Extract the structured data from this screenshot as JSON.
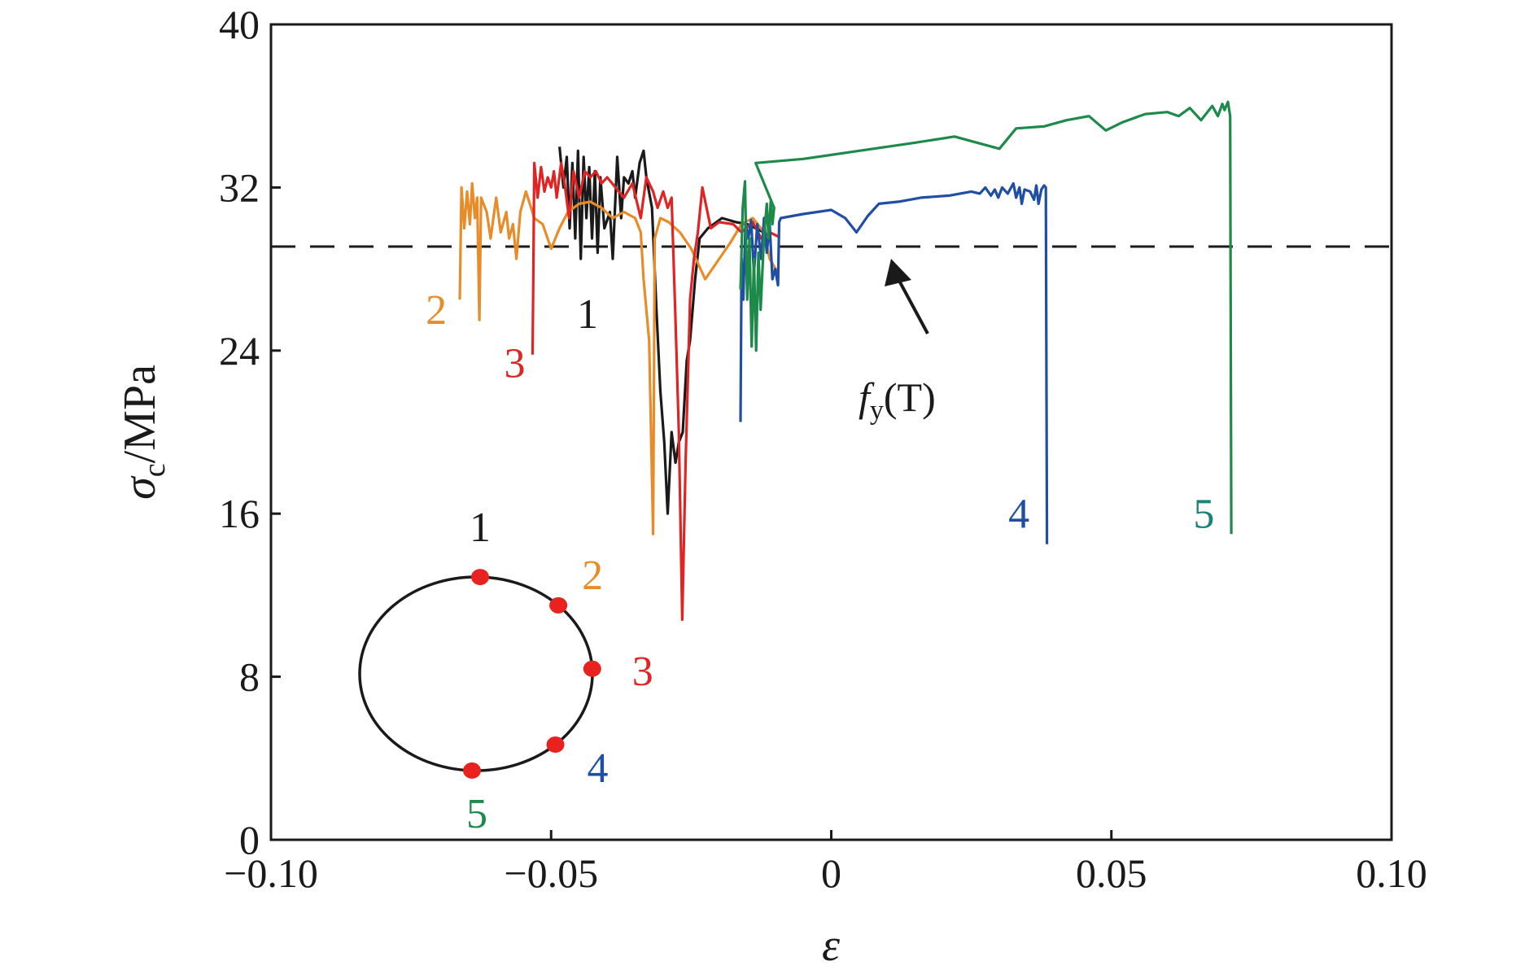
{
  "chart_data": {
    "type": "line",
    "xlabel": "ε",
    "ylabel_symbol": "σ",
    "ylabel_subscript": "c",
    "ylabel_unit": "/MPa",
    "xlim": [
      -0.1,
      0.1
    ],
    "ylim": [
      0,
      40
    ],
    "x_ticks": [
      -0.1,
      -0.05,
      0,
      0.05,
      0.1
    ],
    "x_tick_labels": [
      "−0.10",
      "−0.05",
      "0",
      "0.05",
      "0.10"
    ],
    "y_ticks": [
      0,
      8,
      16,
      24,
      32,
      40
    ],
    "y_tick_labels": [
      "0",
      "8",
      "16",
      "24",
      "32",
      "40"
    ],
    "grid": false,
    "reference_line": {
      "y": 29.1,
      "style": "dashed",
      "label_f": "f",
      "label_sub": "y",
      "label_rest": "(T)"
    },
    "series": [
      {
        "name": "1",
        "color": "#1a1a1a",
        "points": [
          [
            -0.0485,
            34
          ],
          [
            -0.0478,
            32
          ],
          [
            -0.0472,
            33.5
          ],
          [
            -0.0467,
            30
          ],
          [
            -0.0462,
            33.2
          ],
          [
            -0.0457,
            29.5
          ],
          [
            -0.0452,
            33.8
          ],
          [
            -0.0447,
            28.5
          ],
          [
            -0.0442,
            33.5
          ],
          [
            -0.0437,
            30.5
          ],
          [
            -0.0432,
            33
          ],
          [
            -0.0427,
            29.5
          ],
          [
            -0.0422,
            32.8
          ],
          [
            -0.0417,
            28.8
          ],
          [
            -0.0412,
            32.5
          ],
          [
            -0.0405,
            30
          ],
          [
            -0.0395,
            30.8
          ],
          [
            -0.039,
            28.5
          ],
          [
            -0.0382,
            33.5
          ],
          [
            -0.0375,
            30.5
          ],
          [
            -0.037,
            32.5
          ],
          [
            -0.0362,
            32.2
          ],
          [
            -0.0355,
            32.8
          ],
          [
            -0.035,
            31.5
          ],
          [
            -0.0342,
            33.2
          ],
          [
            -0.0335,
            33.8
          ],
          [
            -0.033,
            32.5
          ],
          [
            -0.032,
            31
          ],
          [
            -0.0312,
            26
          ],
          [
            -0.0305,
            22
          ],
          [
            -0.0298,
            19.5
          ],
          [
            -0.0292,
            16
          ],
          [
            -0.0285,
            20
          ],
          [
            -0.0278,
            18.5
          ],
          [
            -0.0272,
            19.5
          ],
          [
            -0.0265,
            20
          ],
          [
            -0.0258,
            23.5
          ],
          [
            -0.0252,
            24.5
          ],
          [
            -0.0243,
            27.5
          ],
          [
            -0.0235,
            29.5
          ],
          [
            -0.022,
            30
          ],
          [
            -0.0195,
            30.5
          ],
          [
            -0.017,
            30.3
          ],
          [
            -0.015,
            30.2
          ],
          [
            -0.0135,
            30
          ],
          [
            -0.012,
            29.8
          ]
        ]
      },
      {
        "name": "2",
        "color": "#e88c2a",
        "points": [
          [
            -0.0663,
            26.5
          ],
          [
            -0.066,
            32
          ],
          [
            -0.0655,
            30
          ],
          [
            -0.065,
            31.8
          ],
          [
            -0.0645,
            30.2
          ],
          [
            -0.0641,
            32.2
          ],
          [
            -0.0636,
            30.5
          ],
          [
            -0.0632,
            31.5
          ],
          [
            -0.0628,
            25.5
          ],
          [
            -0.0625,
            31.5
          ],
          [
            -0.0615,
            30.8
          ],
          [
            -0.0608,
            29.5
          ],
          [
            -0.0598,
            31.5
          ],
          [
            -0.059,
            29.8
          ],
          [
            -0.058,
            30.8
          ],
          [
            -0.0575,
            29.5
          ],
          [
            -0.0568,
            30.2
          ],
          [
            -0.0562,
            28.5
          ],
          [
            -0.0555,
            30.8
          ],
          [
            -0.0545,
            31.8
          ],
          [
            -0.053,
            30.5
          ],
          [
            -0.0515,
            30.2
          ],
          [
            -0.05,
            29
          ],
          [
            -0.0485,
            30
          ],
          [
            -0.047,
            30.8
          ],
          [
            -0.045,
            31.2
          ],
          [
            -0.043,
            31.3
          ],
          [
            -0.041,
            31
          ],
          [
            -0.039,
            30.5
          ],
          [
            -0.037,
            30.8
          ],
          [
            -0.035,
            30.5
          ],
          [
            -0.034,
            29.8
          ],
          [
            -0.0335,
            27.5
          ],
          [
            -0.0325,
            24.5
          ],
          [
            -0.0318,
            15
          ],
          [
            -0.0315,
            29.5
          ],
          [
            -0.0305,
            30.5
          ],
          [
            -0.029,
            30.3
          ],
          [
            -0.027,
            29.8
          ],
          [
            -0.025,
            29
          ],
          [
            -0.0225,
            27.5
          ],
          [
            -0.02,
            28.5
          ],
          [
            -0.018,
            29.3
          ],
          [
            -0.016,
            30.2
          ],
          [
            -0.014,
            30.5
          ],
          [
            -0.012,
            29.8
          ],
          [
            -0.011,
            28.5
          ],
          [
            -0.0095,
            27.8
          ]
        ]
      },
      {
        "name": "3",
        "color": "#e02424",
        "points": [
          [
            -0.0533,
            23.8
          ],
          [
            -0.053,
            33.2
          ],
          [
            -0.0524,
            31.5
          ],
          [
            -0.0518,
            33
          ],
          [
            -0.0512,
            31.8
          ],
          [
            -0.0506,
            32.5
          ],
          [
            -0.05,
            32
          ],
          [
            -0.0495,
            32.8
          ],
          [
            -0.049,
            31.5
          ],
          [
            -0.0482,
            33.2
          ],
          [
            -0.0476,
            32.2
          ],
          [
            -0.0468,
            30.5
          ],
          [
            -0.046,
            32.8
          ],
          [
            -0.045,
            31.5
          ],
          [
            -0.044,
            32.8
          ],
          [
            -0.043,
            32.5
          ],
          [
            -0.042,
            32.8
          ],
          [
            -0.041,
            32.2
          ],
          [
            -0.04,
            32.5
          ],
          [
            -0.0385,
            32
          ],
          [
            -0.037,
            31.5
          ],
          [
            -0.0355,
            32.2
          ],
          [
            -0.034,
            30.5
          ],
          [
            -0.033,
            32.5
          ],
          [
            -0.0318,
            31.8
          ],
          [
            -0.031,
            31
          ],
          [
            -0.03,
            31.8
          ],
          [
            -0.0292,
            31
          ],
          [
            -0.0285,
            31.5
          ],
          [
            -0.0278,
            25.5
          ],
          [
            -0.0272,
            20
          ],
          [
            -0.0266,
            10.8
          ],
          [
            -0.026,
            18.5
          ],
          [
            -0.0252,
            26.5
          ],
          [
            -0.0245,
            28.5
          ],
          [
            -0.0238,
            29.8
          ],
          [
            -0.023,
            32
          ],
          [
            -0.0215,
            30
          ],
          [
            -0.02,
            30.3
          ],
          [
            -0.0175,
            30.2
          ],
          [
            -0.016,
            29.8
          ],
          [
            -0.014,
            30.3
          ],
          [
            -0.0125,
            29.5
          ],
          [
            -0.011,
            29.8
          ],
          [
            -0.0095,
            29.6
          ]
        ]
      },
      {
        "name": "4",
        "color": "#1f4ea3",
        "points": [
          [
            -0.0162,
            20.5
          ],
          [
            -0.016,
            28.5
          ],
          [
            -0.0157,
            26.5
          ],
          [
            -0.0153,
            30.3
          ],
          [
            -0.0148,
            29.5
          ],
          [
            -0.0143,
            30.4
          ],
          [
            -0.0138,
            27.8
          ],
          [
            -0.0132,
            30.2
          ],
          [
            -0.0125,
            28.5
          ],
          [
            -0.012,
            30.5
          ],
          [
            -0.0115,
            28.8
          ],
          [
            -0.011,
            30.2
          ],
          [
            -0.0105,
            27.5
          ],
          [
            -0.01,
            28
          ],
          [
            -0.0095,
            27.2
          ],
          [
            -0.0093,
            30.3
          ],
          [
            -0.009,
            30.5
          ],
          [
            -0.005,
            30.7
          ],
          [
            0,
            30.9
          ],
          [
            0.0025,
            30.5
          ],
          [
            0.0045,
            29.8
          ],
          [
            0.0065,
            30.6
          ],
          [
            0.0085,
            31.2
          ],
          [
            0.012,
            31.3
          ],
          [
            0.016,
            31.5
          ],
          [
            0.021,
            31.6
          ],
          [
            0.025,
            31.8
          ],
          [
            0.0265,
            31.7
          ],
          [
            0.0275,
            32
          ],
          [
            0.0285,
            31.6
          ],
          [
            0.0292,
            31.9
          ],
          [
            0.0298,
            31.5
          ],
          [
            0.0305,
            32
          ],
          [
            0.0315,
            31.7
          ],
          [
            0.0325,
            32.2
          ],
          [
            0.033,
            31.5
          ],
          [
            0.0336,
            32
          ],
          [
            0.034,
            31.2
          ],
          [
            0.0345,
            31.9
          ],
          [
            0.0355,
            31.8
          ],
          [
            0.0362,
            31.4
          ],
          [
            0.0366,
            32.1
          ],
          [
            0.037,
            31.2
          ],
          [
            0.0375,
            31.9
          ],
          [
            0.038,
            32.1
          ],
          [
            0.0383,
            32
          ],
          [
            0.0385,
            14.5
          ]
        ]
      },
      {
        "name": "5",
        "color": "#1e8a4a",
        "points": [
          [
            -0.0162,
            27
          ],
          [
            -0.0158,
            31
          ],
          [
            -0.0154,
            32.3
          ],
          [
            -0.015,
            26.5
          ],
          [
            -0.0146,
            29.5
          ],
          [
            -0.0142,
            24.2
          ],
          [
            -0.0138,
            28.5
          ],
          [
            -0.0134,
            24
          ],
          [
            -0.013,
            28.8
          ],
          [
            -0.0126,
            26
          ],
          [
            -0.012,
            29.6
          ],
          [
            -0.0115,
            31.2
          ],
          [
            -0.0112,
            29.5
          ],
          [
            -0.0108,
            31.3
          ],
          [
            -0.0105,
            30.2
          ],
          [
            -0.0102,
            31
          ],
          [
            -0.0135,
            33.2
          ],
          [
            -0.005,
            33.4
          ],
          [
            0.005,
            33.8
          ],
          [
            0.015,
            34.2
          ],
          [
            0.022,
            34.5
          ],
          [
            0.026,
            34.2
          ],
          [
            0.03,
            33.9
          ],
          [
            0.033,
            34.9
          ],
          [
            0.038,
            35
          ],
          [
            0.042,
            35.3
          ],
          [
            0.046,
            35.5
          ],
          [
            0.049,
            34.8
          ],
          [
            0.052,
            35.2
          ],
          [
            0.056,
            35.6
          ],
          [
            0.06,
            35.7
          ],
          [
            0.062,
            35.5
          ],
          [
            0.064,
            35.9
          ],
          [
            0.066,
            35.3
          ],
          [
            0.068,
            36
          ],
          [
            0.069,
            35.5
          ],
          [
            0.0698,
            36.1
          ],
          [
            0.0702,
            35.8
          ],
          [
            0.0708,
            36.2
          ],
          [
            0.0712,
            35.5
          ],
          [
            0.0714,
            15
          ]
        ]
      }
    ],
    "curve_labels": [
      {
        "text": "1",
        "color": "#1a1a1a",
        "x": -0.0435,
        "y": 25.1
      },
      {
        "text": "2",
        "color": "#e88c2a",
        "x": -0.0705,
        "y": 25.3
      },
      {
        "text": "3",
        "color": "#e02424",
        "x": -0.0565,
        "y": 22.7
      },
      {
        "text": "4",
        "color": "#1f4ea3",
        "x": 0.0335,
        "y": 15.3
      },
      {
        "text": "5",
        "color": "#1a8277",
        "x": 0.0665,
        "y": 15.3
      }
    ],
    "inset": {
      "description": "cross-section positions",
      "points": [
        {
          "label": "1",
          "color": "#1a1a1a"
        },
        {
          "label": "2",
          "color": "#e88c2a"
        },
        {
          "label": "3",
          "color": "#e02424"
        },
        {
          "label": "4",
          "color": "#1f4ea3"
        },
        {
          "label": "5",
          "color": "#1e8a4a"
        }
      ],
      "marker_color": "#e8231f"
    }
  }
}
